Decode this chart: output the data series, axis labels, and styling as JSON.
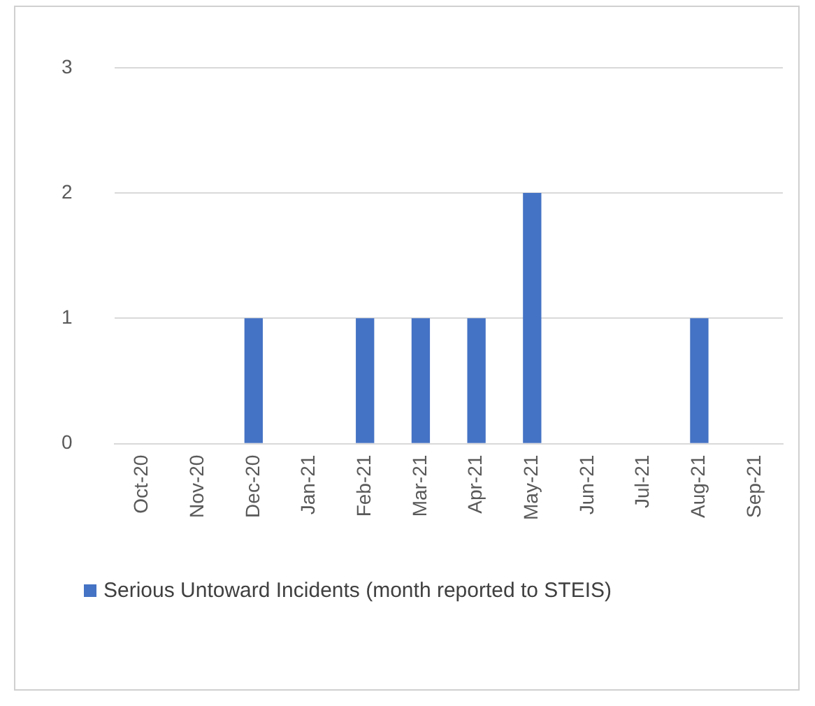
{
  "chart_data": {
    "type": "bar",
    "categories": [
      "Oct-20",
      "Nov-20",
      "Dec-20",
      "Jan-21",
      "Feb-21",
      "Mar-21",
      "Apr-21",
      "May-21",
      "Jun-21",
      "Jul-21",
      "Aug-21",
      "Sep-21"
    ],
    "series": [
      {
        "name": "Serious Untoward Incidents (month reported to STEIS)",
        "color": "#4472c4",
        "values": [
          0,
          0,
          1,
          0,
          1,
          1,
          1,
          2,
          0,
          0,
          1,
          0
        ]
      }
    ],
    "ylim": [
      0,
      3
    ],
    "yticks": [
      0,
      1,
      2,
      3
    ],
    "grid": "y",
    "legend": "bottom"
  }
}
